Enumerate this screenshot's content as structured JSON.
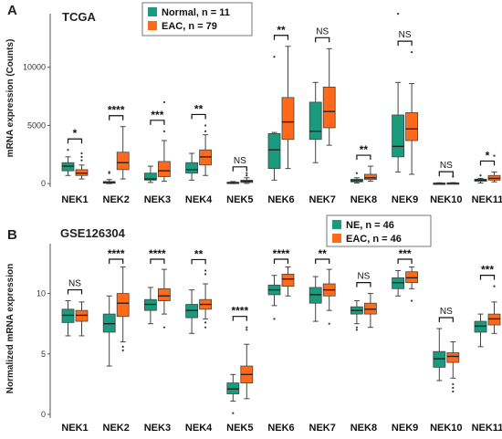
{
  "colors": {
    "group1": "#1a9b7d",
    "group2": "#ff6a1a",
    "axis": "#555555",
    "outline": "#444444"
  },
  "chart_data": [
    {
      "type": "box",
      "panel_label": "A",
      "title": "TCGA",
      "ylabel": "mRNA expression (Counts)",
      "ylim": [
        -300,
        15000
      ],
      "yticks": [
        0,
        5000,
        10000
      ],
      "legend": {
        "position": "top",
        "entries": [
          "Normal, n = 11",
          "EAC, n = 79"
        ]
      },
      "categories": [
        "NEK1",
        "NEK2",
        "NEK3",
        "NEK4",
        "NEK5",
        "NEK6",
        "NEK7",
        "NEK8",
        "NEK9",
        "NEK10",
        "NEK11"
      ],
      "significance": [
        "*",
        "****",
        "***",
        "**",
        "NS",
        "**",
        "NS",
        "**",
        "NS",
        "NS",
        "*"
      ],
      "series": [
        {
          "name": "Normal, n = 11",
          "boxes": [
            {
              "whislo": 700,
              "q1": 1100,
              "med": 1500,
              "q3": 1800,
              "whishi": 2300,
              "outliers": [
                2900
              ]
            },
            {
              "whislo": 0,
              "q1": 30,
              "med": 100,
              "q3": 180,
              "whishi": 350,
              "outliers": [
                900,
                1000
              ]
            },
            {
              "whislo": 100,
              "q1": 300,
              "med": 400,
              "q3": 900,
              "whishi": 1500,
              "outliers": []
            },
            {
              "whislo": 300,
              "q1": 900,
              "med": 1200,
              "q3": 1800,
              "whishi": 2600,
              "outliers": []
            },
            {
              "whislo": 0,
              "q1": 50,
              "med": 80,
              "q3": 120,
              "whishi": 180,
              "outliers": []
            },
            {
              "whislo": 300,
              "q1": 1300,
              "med": 2900,
              "q3": 4300,
              "whishi": 4400,
              "outliers": [
                10900
              ]
            },
            {
              "whislo": 1800,
              "q1": 3800,
              "med": 4500,
              "q3": 7000,
              "whishi": 8700,
              "outliers": []
            },
            {
              "whislo": 50,
              "q1": 150,
              "med": 250,
              "q3": 380,
              "whishi": 500,
              "outliers": [
                900
              ]
            },
            {
              "whislo": 1000,
              "q1": 2300,
              "med": 3200,
              "q3": 5900,
              "whishi": 8700,
              "outliers": [
                14600
              ]
            },
            {
              "whislo": 0,
              "q1": 10,
              "med": 20,
              "q3": 40,
              "whishi": 70,
              "outliers": []
            },
            {
              "whislo": 50,
              "q1": 200,
              "med": 300,
              "q3": 380,
              "whishi": 450,
              "outliers": [
                700
              ]
            }
          ]
        },
        {
          "name": "EAC, n = 79",
          "boxes": [
            {
              "whislo": 400,
              "q1": 700,
              "med": 900,
              "q3": 1200,
              "whishi": 1600,
              "outliers": [
                2000,
                2300,
                2600
              ]
            },
            {
              "whislo": 400,
              "q1": 1200,
              "med": 1800,
              "q3": 2700,
              "whishi": 4900,
              "outliers": []
            },
            {
              "whislo": 200,
              "q1": 600,
              "med": 1100,
              "q3": 1900,
              "whishi": 3700,
              "outliers": [
                4500,
                7000
              ]
            },
            {
              "whislo": 700,
              "q1": 1600,
              "med": 2300,
              "q3": 2900,
              "whishi": 4200,
              "outliers": [
                4500,
                5000
              ]
            },
            {
              "whislo": 20,
              "q1": 100,
              "med": 200,
              "q3": 300,
              "whishi": 500,
              "outliers": [
                700,
                900
              ]
            },
            {
              "whislo": 1300,
              "q1": 3800,
              "med": 5300,
              "q3": 7400,
              "whishi": 11800,
              "outliers": []
            },
            {
              "whislo": 3300,
              "q1": 4800,
              "med": 6200,
              "q3": 8300,
              "whishi": 11600,
              "outliers": []
            },
            {
              "whislo": 200,
              "q1": 350,
              "med": 500,
              "q3": 800,
              "whishi": 1500,
              "outliers": []
            },
            {
              "whislo": 800,
              "q1": 3700,
              "med": 4700,
              "q3": 6100,
              "whishi": 8600,
              "outliers": [
                11300
              ]
            },
            {
              "whislo": 0,
              "q1": 20,
              "med": 40,
              "q3": 60,
              "whishi": 80,
              "outliers": [
                600
              ]
            },
            {
              "whislo": 150,
              "q1": 300,
              "med": 450,
              "q3": 700,
              "whishi": 1000,
              "outliers": [
                2400
              ]
            }
          ]
        }
      ]
    },
    {
      "type": "box",
      "panel_label": "B",
      "title": "GSE126304",
      "ylabel": "Normalized mRNA expression",
      "ylim": [
        -0.3,
        14.5
      ],
      "yticks": [
        0,
        5,
        10
      ],
      "legend": {
        "position": "top-right",
        "entries": [
          "NE, n = 46",
          "EAC, n = 46"
        ]
      },
      "categories": [
        "NEK1",
        "NEK2",
        "NEK3",
        "NEK4",
        "NEK5",
        "NEK6",
        "NEK7",
        "NEK8",
        "NEK9",
        "NEK10",
        "NEK11"
      ],
      "significance": [
        "NS",
        "****",
        "****",
        "**",
        "****",
        "****",
        "**",
        "NS",
        "***",
        "NS",
        "***"
      ],
      "series": [
        {
          "name": "NE, n = 46",
          "boxes": [
            {
              "whislo": 6.5,
              "q1": 7.6,
              "med": 8.2,
              "q3": 8.7,
              "whishi": 9.4,
              "outliers": []
            },
            {
              "whislo": 4.0,
              "q1": 6.8,
              "med": 7.5,
              "q3": 8.3,
              "whishi": 9.8,
              "outliers": []
            },
            {
              "whislo": 7.5,
              "q1": 8.6,
              "med": 9.1,
              "q3": 9.5,
              "whishi": 10.5,
              "outliers": []
            },
            {
              "whislo": 6.7,
              "q1": 8.0,
              "med": 8.6,
              "q3": 9.1,
              "whishi": 10.3,
              "outliers": []
            },
            {
              "whislo": 1.1,
              "q1": 1.7,
              "med": 2.1,
              "q3": 2.6,
              "whishi": 3.3,
              "outliers": [
                0.1
              ]
            },
            {
              "whislo": 9.0,
              "q1": 9.9,
              "med": 10.3,
              "q3": 10.7,
              "whishi": 11.5,
              "outliers": [
                7.9
              ]
            },
            {
              "whislo": 7.7,
              "q1": 9.2,
              "med": 9.9,
              "q3": 10.5,
              "whishi": 11.4,
              "outliers": []
            },
            {
              "whislo": 7.5,
              "q1": 8.3,
              "med": 8.6,
              "q3": 8.9,
              "whishi": 9.4,
              "outliers": [
                7.0,
                7.2
              ]
            },
            {
              "whislo": 9.8,
              "q1": 10.4,
              "med": 10.9,
              "q3": 11.3,
              "whishi": 11.9,
              "outliers": []
            },
            {
              "whislo": 2.8,
              "q1": 3.9,
              "med": 4.6,
              "q3": 5.2,
              "whishi": 7.1,
              "outliers": []
            },
            {
              "whislo": 5.6,
              "q1": 6.8,
              "med": 7.3,
              "q3": 7.7,
              "whishi": 8.3,
              "outliers": []
            }
          ]
        },
        {
          "name": "EAC, n = 46",
          "boxes": [
            {
              "whislo": 6.5,
              "q1": 7.7,
              "med": 8.2,
              "q3": 8.6,
              "whishi": 9.3,
              "outliers": []
            },
            {
              "whislo": 6.0,
              "q1": 8.1,
              "med": 9.2,
              "q3": 10.0,
              "whishi": 12.2,
              "outliers": [
                5.3,
                5.6
              ]
            },
            {
              "whislo": 8.3,
              "q1": 9.4,
              "med": 9.8,
              "q3": 10.4,
              "whishi": 12.0,
              "outliers": [
                7.2
              ]
            },
            {
              "whislo": 7.9,
              "q1": 8.7,
              "med": 9.1,
              "q3": 9.5,
              "whishi": 10.8,
              "outliers": [
                7.2,
                7.6,
                11.6,
                11.9
              ]
            },
            {
              "whislo": 1.3,
              "q1": 2.6,
              "med": 3.3,
              "q3": 4.0,
              "whishi": 5.8,
              "outliers": [
                7.0,
                7.2
              ]
            },
            {
              "whislo": 9.8,
              "q1": 10.6,
              "med": 11.2,
              "q3": 11.6,
              "whishi": 12.2,
              "outliers": []
            },
            {
              "whislo": 8.6,
              "q1": 9.8,
              "med": 10.3,
              "q3": 10.8,
              "whishi": 12.0,
              "outliers": [
                7.5
              ]
            },
            {
              "whislo": 7.2,
              "q1": 8.3,
              "med": 8.7,
              "q3": 9.2,
              "whishi": 10.0,
              "outliers": []
            },
            {
              "whislo": 10.4,
              "q1": 10.9,
              "med": 11.3,
              "q3": 11.8,
              "whishi": 12.2,
              "outliers": [
                9.4
              ]
            },
            {
              "whislo": 3.0,
              "q1": 4.3,
              "med": 4.8,
              "q3": 5.1,
              "whishi": 6.0,
              "outliers": [
                1.9,
                2.2,
                2.5
              ]
            },
            {
              "whislo": 6.7,
              "q1": 7.4,
              "med": 7.9,
              "q3": 8.3,
              "whishi": 9.3,
              "outliers": [
                10.6
              ]
            }
          ]
        }
      ]
    }
  ]
}
